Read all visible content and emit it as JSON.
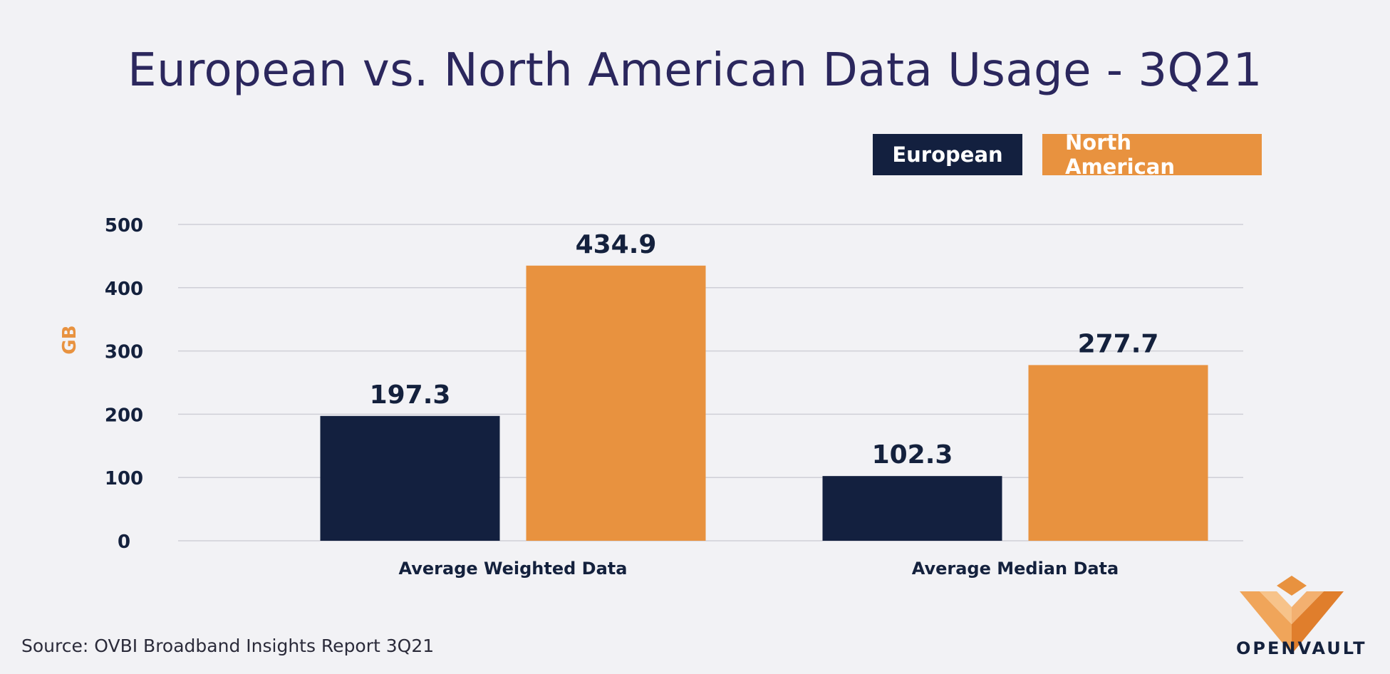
{
  "colors": {
    "european": "#13203f",
    "north_american": "#e8923f",
    "grid": "#cfcfd6"
  },
  "legend": {
    "european": "European",
    "north_american": "North American"
  },
  "source": "Source: OVBI Broadband Insights Report 3Q21",
  "logo": {
    "text": "OpenVault"
  },
  "chart_data": {
    "type": "bar",
    "title": "European vs. North American Data Usage - 3Q21",
    "xlabel": "",
    "ylabel": "GB",
    "ylim": [
      0,
      500
    ],
    "yticks": [
      0,
      100,
      200,
      300,
      400,
      500
    ],
    "grid": true,
    "legend_position": "top-right",
    "categories": [
      "Average Weighted Data",
      "Average Median Data"
    ],
    "series": [
      {
        "name": "European",
        "values": [
          197.3,
          102.3
        ],
        "labels": [
          "197.3",
          "102.3"
        ]
      },
      {
        "name": "North American",
        "values": [
          434.9,
          277.7
        ],
        "labels": [
          "434.9",
          "277.7"
        ]
      }
    ]
  }
}
